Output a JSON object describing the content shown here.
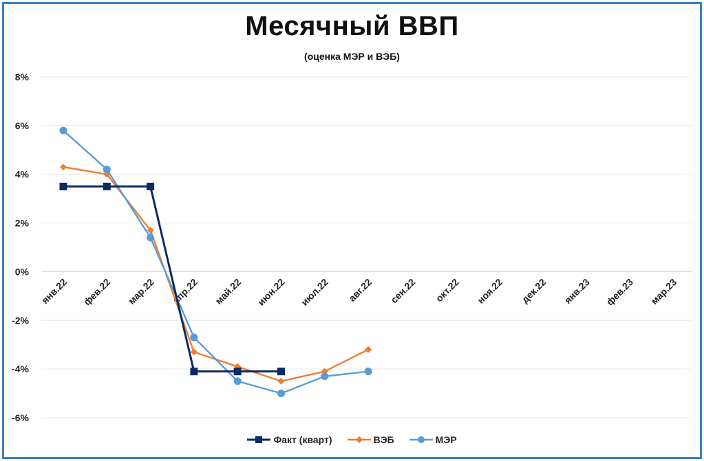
{
  "chart_data": {
    "type": "line",
    "title": "Месячный ВВП",
    "subtitle": "(оценка МЭР и ВЭБ)",
    "categories": [
      "янв.22",
      "фев.22",
      "мар.22",
      "апр.22",
      "май.22",
      "июн.22",
      "июл.22",
      "авг.22",
      "сен.22",
      "окт.22",
      "ноя.22",
      "дек.22",
      "янв.23",
      "фев.23",
      "мар.23"
    ],
    "y_ticks": [
      "8%",
      "6%",
      "4%",
      "2%",
      "0%",
      "-2%",
      "-4%",
      "-6%"
    ],
    "ylim": [
      -6,
      8
    ],
    "grid": true,
    "legend_position": "bottom",
    "series": [
      {
        "name": "Факт (кварт)",
        "color": "#0b2a63",
        "marker": "square",
        "values": [
          3.5,
          3.5,
          3.5,
          -4.1,
          -4.1,
          -4.1,
          null,
          null,
          null,
          null,
          null,
          null,
          null,
          null,
          null
        ]
      },
      {
        "name": "ВЭБ",
        "color": "#ed7d31",
        "marker": "diamond",
        "values": [
          4.3,
          4.0,
          1.7,
          -3.3,
          -3.9,
          -4.5,
          -4.1,
          -3.2,
          null,
          null,
          null,
          null,
          null,
          null,
          null
        ]
      },
      {
        "name": "МЭР",
        "color": "#5b9bd5",
        "marker": "circle",
        "values": [
          5.8,
          4.2,
          1.4,
          -2.7,
          -4.5,
          -5.0,
          -4.3,
          -4.1,
          null,
          null,
          null,
          null,
          null,
          null,
          null
        ]
      }
    ]
  }
}
